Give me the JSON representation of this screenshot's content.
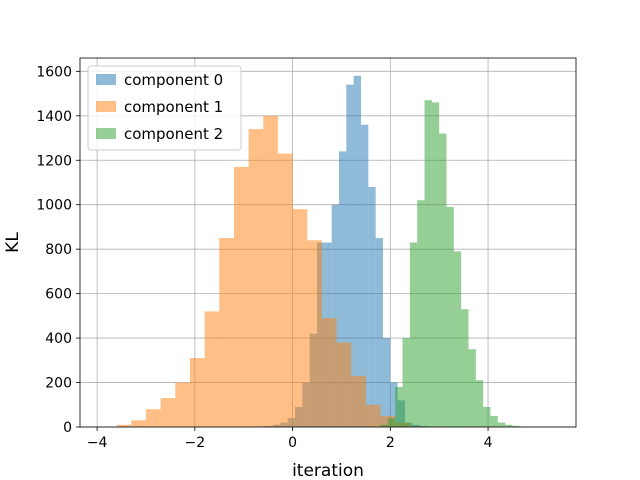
{
  "chart_data": {
    "type": "histogram",
    "xlabel": "iteration",
    "ylabel": "KL",
    "xlim": [
      -4.35,
      5.8
    ],
    "ylim": [
      0,
      1660
    ],
    "xticks": [
      -4,
      -2,
      0,
      2,
      4
    ],
    "yticks": [
      0,
      200,
      400,
      600,
      800,
      1000,
      1200,
      1400,
      1600
    ],
    "grid": true,
    "legend_position": "upper-left",
    "series": [
      {
        "name": "component 0",
        "color": "#1f77b4",
        "opacity": 0.5,
        "bin_edges": [
          -0.7,
          -0.55,
          -0.4,
          -0.25,
          -0.1,
          0.05,
          0.2,
          0.35,
          0.5,
          0.65,
          0.8,
          0.95,
          1.1,
          1.25,
          1.4,
          1.55,
          1.7,
          1.85,
          2.0,
          2.15,
          2.3,
          2.45,
          2.6,
          2.75,
          2.9
        ],
        "counts": [
          3,
          5,
          10,
          20,
          40,
          90,
          200,
          420,
          830,
          830,
          1000,
          1240,
          1540,
          1580,
          1360,
          1080,
          850,
          400,
          200,
          120,
          20,
          10,
          4,
          2
        ]
      },
      {
        "name": "component 1",
        "color": "#ff7f0e",
        "opacity": 0.5,
        "bin_edges": [
          -3.6,
          -3.3,
          -3.0,
          -2.7,
          -2.4,
          -2.1,
          -1.8,
          -1.5,
          -1.2,
          -0.9,
          -0.6,
          -0.3,
          0.0,
          0.3,
          0.6,
          0.9,
          1.2,
          1.5,
          1.8,
          2.1,
          2.4
        ],
        "counts": [
          10,
          30,
          80,
          130,
          200,
          310,
          520,
          850,
          1170,
          1340,
          1400,
          1230,
          980,
          840,
          490,
          380,
          230,
          100,
          50,
          20
        ]
      },
      {
        "name": "component 2",
        "color": "#2ca02c",
        "opacity": 0.5,
        "bin_edges": [
          1.8,
          1.95,
          2.1,
          2.25,
          2.4,
          2.55,
          2.7,
          2.85,
          3.0,
          3.15,
          3.3,
          3.45,
          3.6,
          3.75,
          3.9,
          4.05,
          4.2,
          4.35,
          4.5,
          4.65,
          4.8
        ],
        "counts": [
          10,
          40,
          180,
          400,
          830,
          1020,
          1470,
          1460,
          1320,
          990,
          790,
          530,
          350,
          210,
          90,
          50,
          20,
          10,
          5,
          2
        ]
      }
    ]
  }
}
